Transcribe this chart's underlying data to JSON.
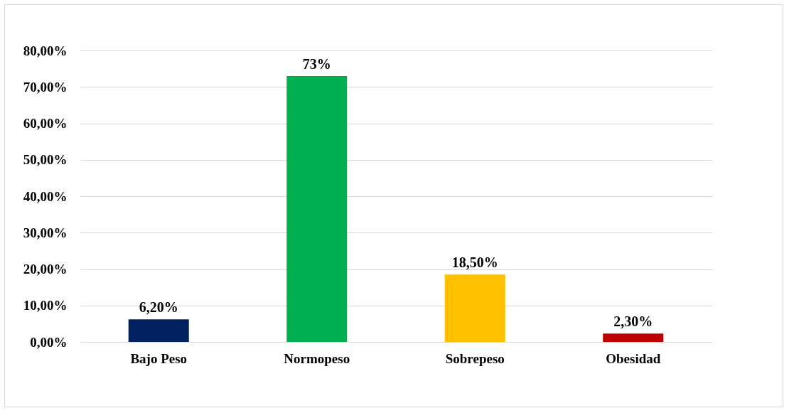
{
  "chart_data": {
    "type": "bar",
    "categories": [
      "Bajo Peso",
      "Normopeso",
      "Sobrepeso",
      "Obesidad"
    ],
    "values": [
      6.2,
      73,
      18.5,
      2.3
    ],
    "colors": [
      "#002060",
      "#00b050",
      "#ffc000",
      "#c00000"
    ],
    "value_labels": [
      "6,20%",
      "73%",
      "18,50%",
      "2,30%"
    ],
    "ylim": [
      0,
      80
    ],
    "yticks": [
      {
        "value": 0,
        "label": "0,00%"
      },
      {
        "value": 10,
        "label": "10,00%"
      },
      {
        "value": 20,
        "label": "20,00%"
      },
      {
        "value": 30,
        "label": "30,00%"
      },
      {
        "value": 40,
        "label": "40,00%"
      },
      {
        "value": 50,
        "label": "50,00%"
      },
      {
        "value": 60,
        "label": "60,00%"
      },
      {
        "value": 70,
        "label": "70,00%"
      },
      {
        "value": 80,
        "label": "80,00%"
      }
    ],
    "grid": "y"
  }
}
